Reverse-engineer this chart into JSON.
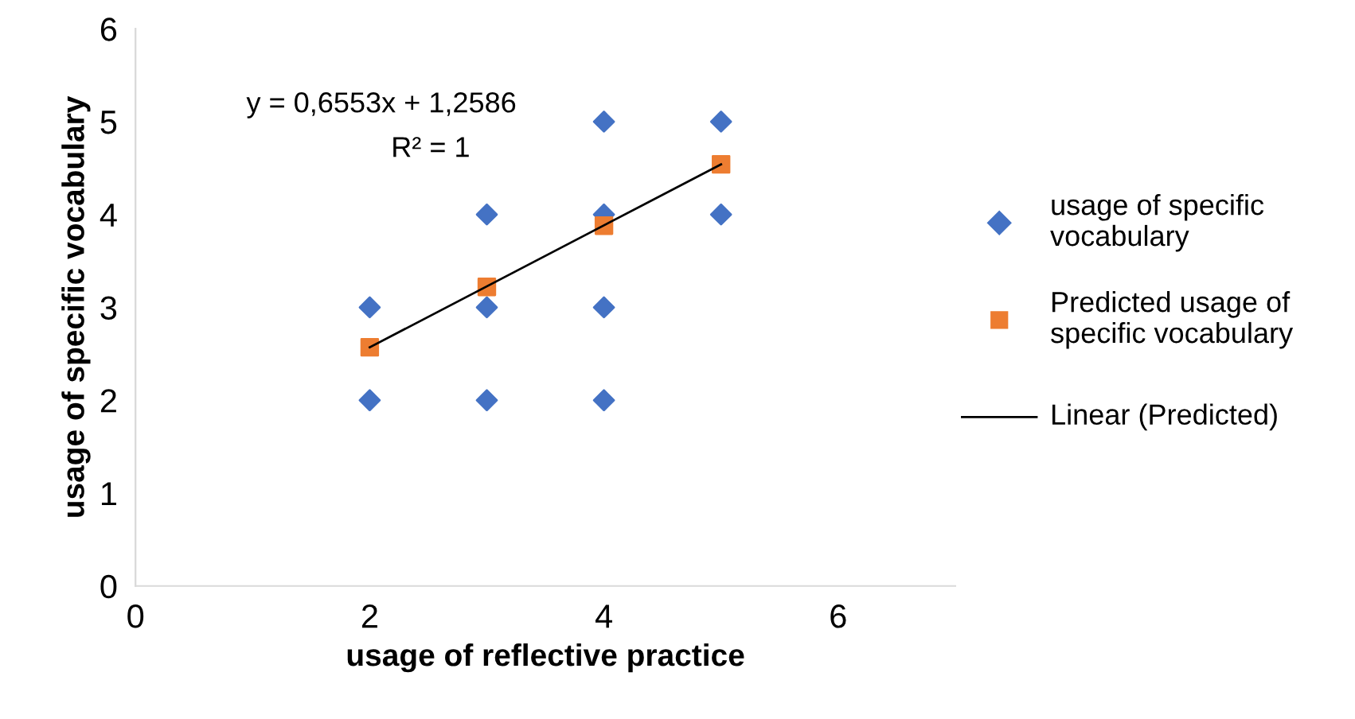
{
  "chart_data": {
    "type": "scatter",
    "xlabel": "usage of reflective practice",
    "ylabel": "usage of specific vocabulary",
    "xlim": [
      0,
      7
    ],
    "xticks": [
      0,
      2,
      4,
      6
    ],
    "ylim": [
      0,
      6
    ],
    "yticks": [
      0,
      1,
      2,
      3,
      4,
      5,
      6
    ],
    "grid": false,
    "legend": "right",
    "annotations": [
      "y = 0,6553x + 1,2586",
      "R² = 1"
    ],
    "series": [
      {
        "name": "usage of specific vocabulary",
        "color": "#4472c4",
        "marker": "diamond",
        "x": [
          2,
          2,
          3,
          3,
          3,
          4,
          4,
          4,
          4,
          5,
          5
        ],
        "values": [
          3,
          2,
          4,
          3,
          2,
          5,
          4,
          3,
          2,
          5,
          4
        ]
      },
      {
        "name": "Predicted usage of specific vocabulary",
        "color": "#ed7d31",
        "marker": "square",
        "x": [
          2,
          3,
          4,
          5
        ],
        "values": [
          2.57,
          3.22,
          3.88,
          4.54
        ]
      },
      {
        "name": "Linear (Predicted)",
        "type": "line",
        "color": "#000000",
        "marker": "none",
        "line_style": "solid",
        "x": [
          2,
          5
        ],
        "values": [
          2.57,
          4.54
        ]
      }
    ]
  }
}
